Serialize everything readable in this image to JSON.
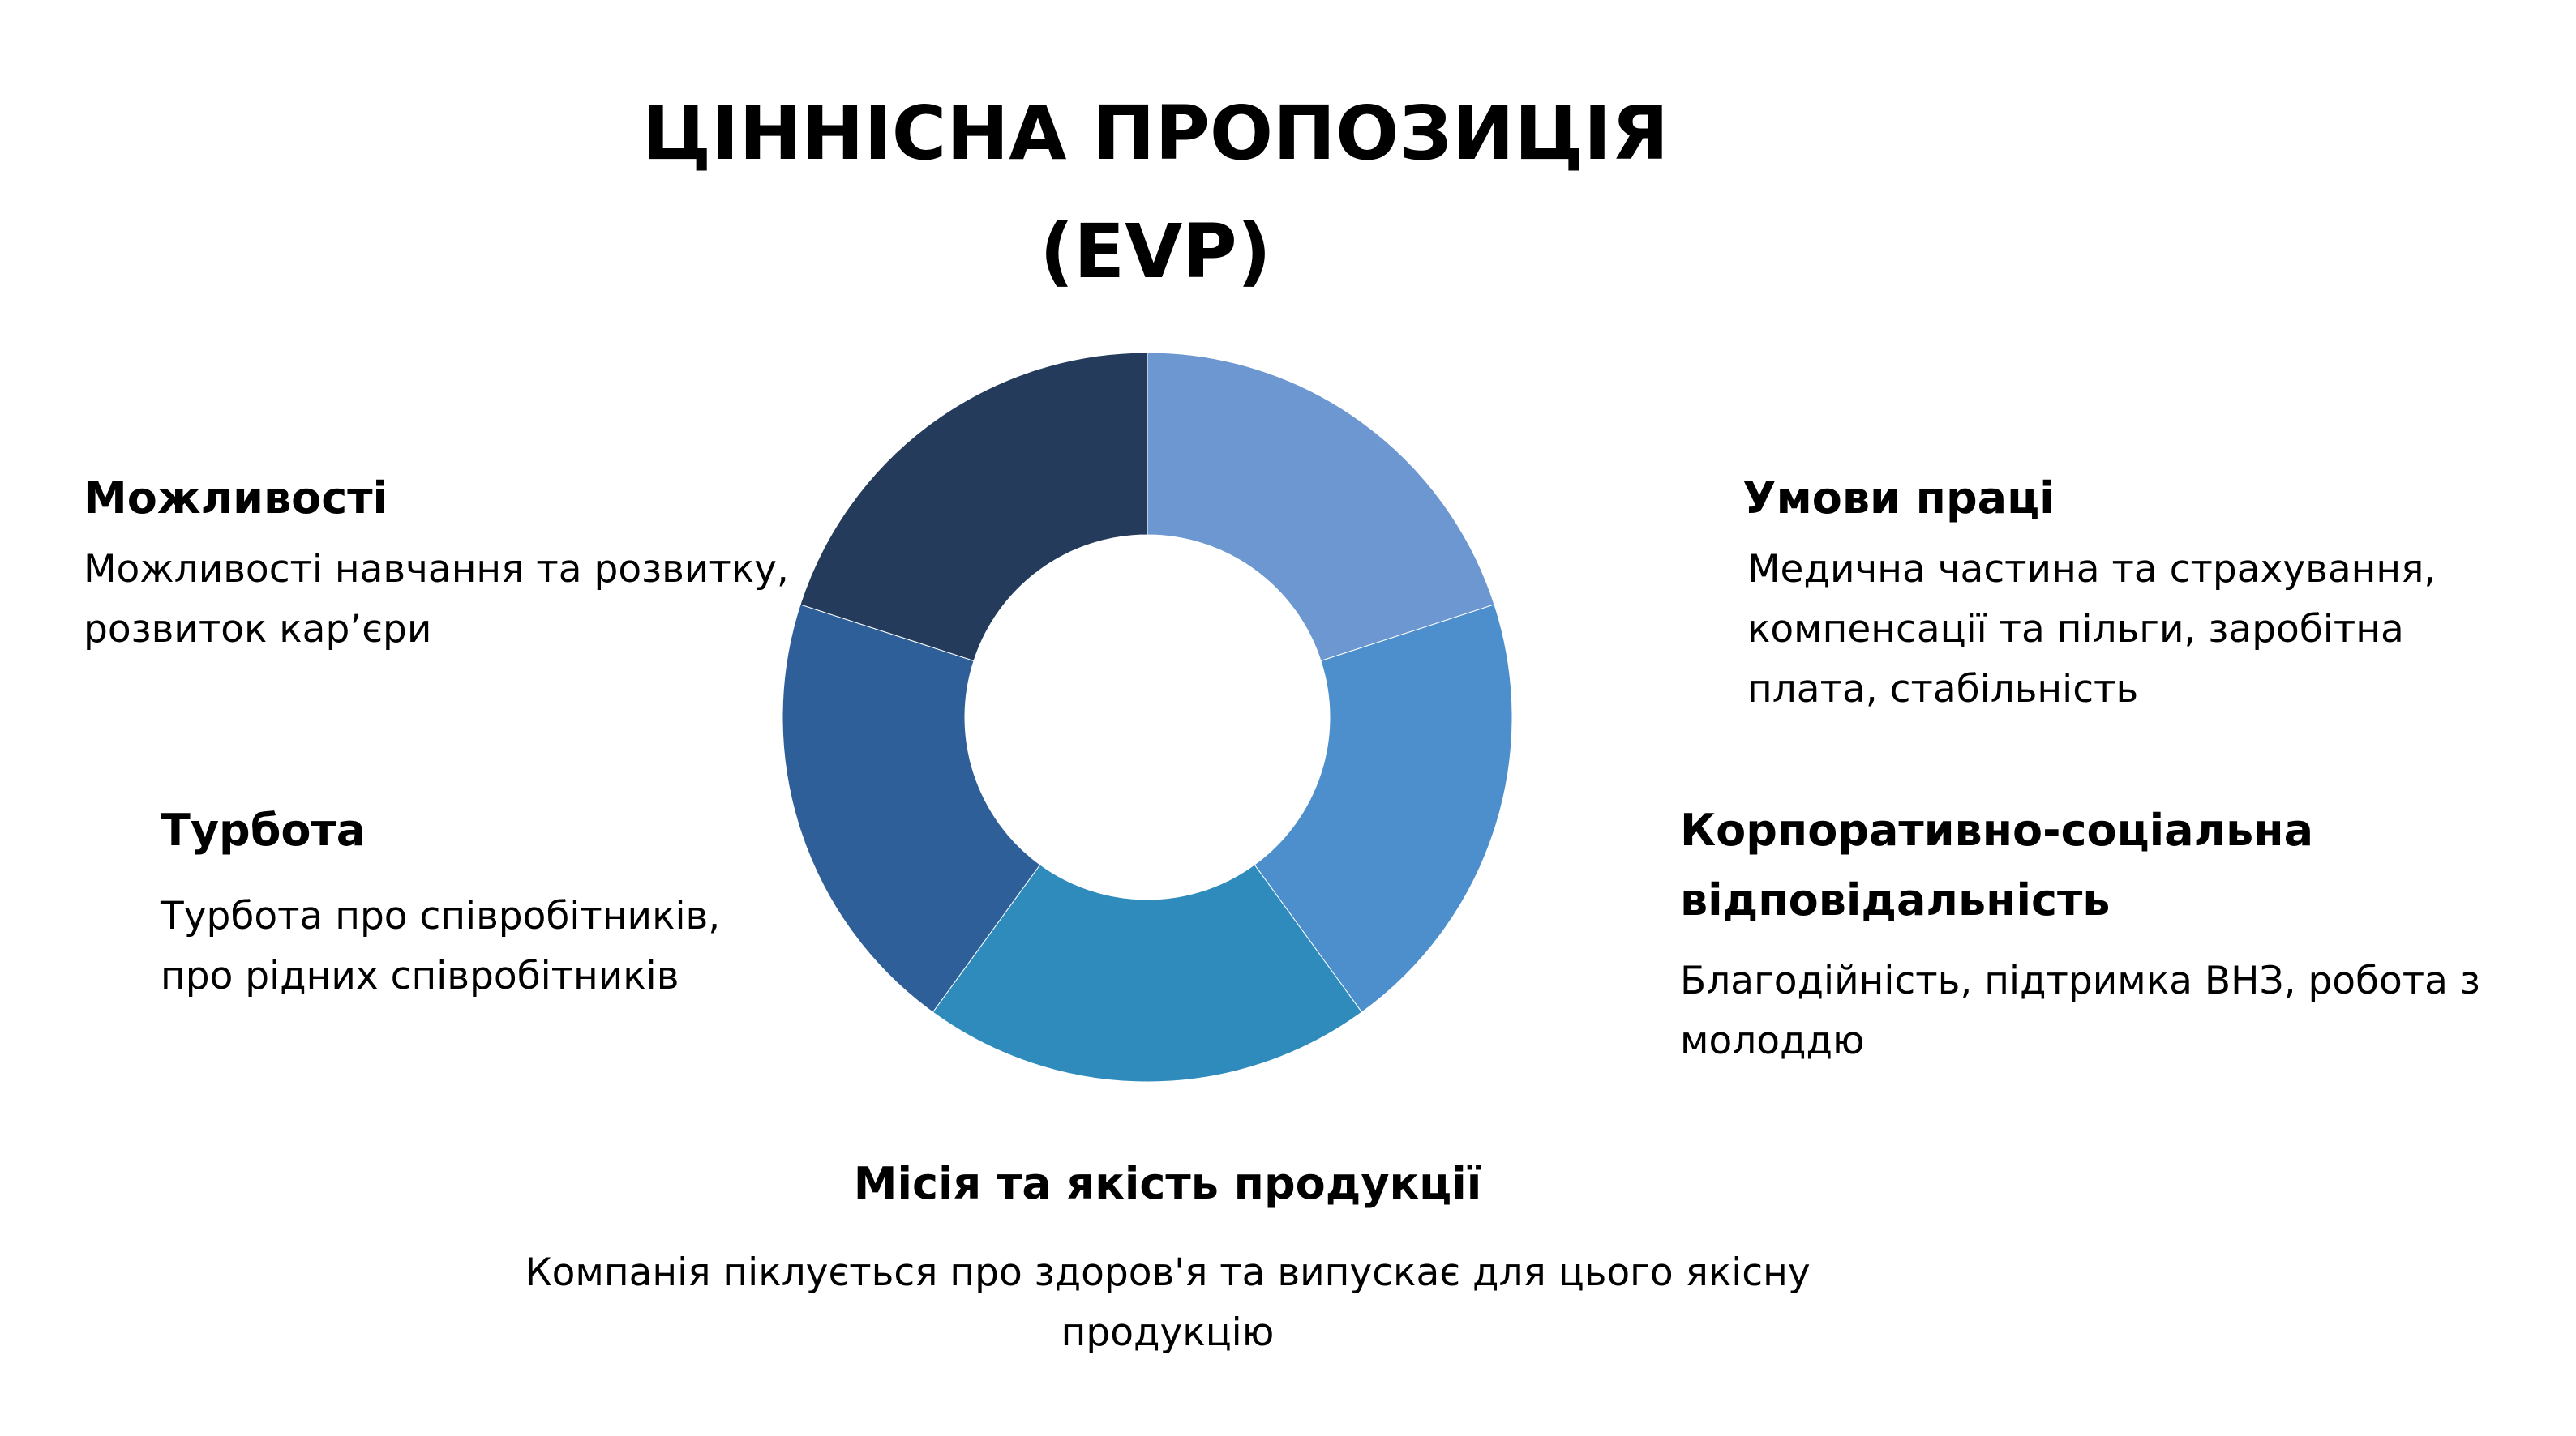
{
  "title": {
    "line1": "ЦІННІСНА ПРОПОЗИЦІЯ",
    "line2": "(EVP)"
  },
  "donut": {
    "segments": [
      {
        "name": "Умови праці",
        "color": "#6C97D0"
      },
      {
        "name": "Корпоративно-соціальна відповідальність",
        "color": "#4D8FCC"
      },
      {
        "name": "Місія та якість продукції",
        "color": "#2E8BBB"
      },
      {
        "name": "Турбота",
        "color": "#2F5F99"
      },
      {
        "name": "Можливості",
        "color": "#243B5C"
      }
    ]
  },
  "blocks": {
    "opportunities": {
      "heading": "Можливості",
      "lines": [
        "Можливості навчання та розвитку,",
        "розвиток кар’єри"
      ]
    },
    "care": {
      "heading": "Турбота",
      "lines": [
        "Турбота про співробітників,",
        "про рідних співробітників"
      ]
    },
    "conditions": {
      "heading": "Умови праці",
      "lines": [
        "Медична частина та страхування,",
        "компенсації та пільги, заробітна",
        "плата, стабільність"
      ]
    },
    "csr": {
      "heading_line1": "Корпоративно-соціальна",
      "heading_line2": "відповідальність",
      "lines": [
        "Благодійність, підтримка ВНЗ, робота з",
        "молоддю"
      ]
    },
    "mission": {
      "heading": "Місія та якість продукції",
      "lines": [
        "Компанія піклується про здоров'я та випускає для цього якісну",
        "продукцію"
      ]
    }
  }
}
